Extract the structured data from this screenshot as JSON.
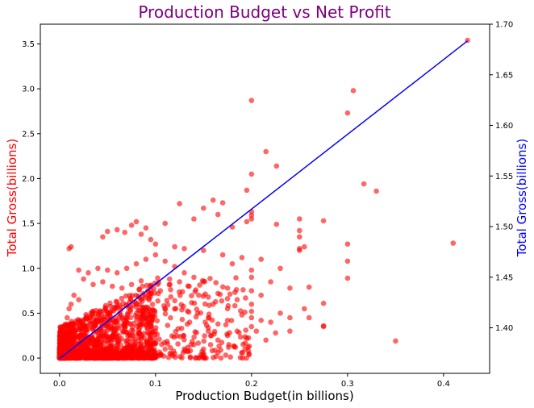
{
  "chart_data": {
    "type": "scatter",
    "title": "Production Budget vs Net Profit",
    "xlabel": "Production Budget(in billions)",
    "ylabel_left": "Total Gross(billions)",
    "ylabel_right": "Total Gross(billions)",
    "xlim": [
      -0.02,
      0.448
    ],
    "ylim_left": [
      -0.17,
      3.72
    ],
    "ylim_right": [
      1.355,
      1.7
    ],
    "x_ticks": [
      0.0,
      0.1,
      0.2,
      0.3,
      0.4
    ],
    "x_tick_labels": [
      "0.0",
      "0.1",
      "0.2",
      "0.3",
      "0.4"
    ],
    "y_left_ticks": [
      0.0,
      0.5,
      1.0,
      1.5,
      2.0,
      2.5,
      3.0,
      3.5
    ],
    "y_left_tick_labels": [
      "0.0",
      "0.5",
      "1.0",
      "1.5",
      "2.0",
      "2.5",
      "3.0",
      "3.5"
    ],
    "y_right_ticks": [
      1.4,
      1.45,
      1.5,
      1.55,
      1.6,
      1.65,
      1.7
    ],
    "y_right_tick_labels": [
      "1.40",
      "1.45",
      "1.50",
      "1.55",
      "1.60",
      "1.65",
      "1.70"
    ],
    "grid": false,
    "legend": "none",
    "colors": {
      "title": "#800080",
      "scatter": "#ff0000",
      "line": "#0000ff",
      "left_label": "#ff0000",
      "right_label": "#0000ff",
      "x_label": "#000000"
    },
    "series": [
      {
        "type": "scatter",
        "axis": "left",
        "points": [
          [
            0.425,
            3.54
          ],
          [
            0.306,
            2.98
          ],
          [
            0.2,
            2.87
          ],
          [
            0.3,
            2.73
          ],
          [
            0.215,
            2.3
          ],
          [
            0.2,
            2.05
          ],
          [
            0.226,
            2.14
          ],
          [
            0.317,
            1.94
          ],
          [
            0.33,
            1.86
          ],
          [
            0.195,
            1.87
          ],
          [
            0.15,
            1.67
          ],
          [
            0.16,
            1.76
          ],
          [
            0.17,
            1.73
          ],
          [
            0.2,
            1.63
          ],
          [
            0.2,
            1.59
          ],
          [
            0.2,
            1.55
          ],
          [
            0.226,
            1.49
          ],
          [
            0.25,
            1.55
          ],
          [
            0.275,
            1.53
          ],
          [
            0.25,
            1.42
          ],
          [
            0.25,
            1.35
          ],
          [
            0.255,
            1.24
          ],
          [
            0.25,
            1.22
          ],
          [
            0.25,
            1.2
          ],
          [
            0.3,
            1.27
          ],
          [
            0.3,
            1.08
          ],
          [
            0.3,
            0.89
          ],
          [
            0.26,
            0.79
          ],
          [
            0.275,
            0.61
          ],
          [
            0.275,
            0.36
          ],
          [
            0.275,
            0.35
          ],
          [
            0.41,
            1.28
          ],
          [
            0.35,
            0.19
          ],
          [
            0.01,
            1.22
          ],
          [
            0.012,
            1.24
          ],
          [
            0.08,
            1.52
          ],
          [
            0.075,
            1.48
          ],
          [
            0.068,
            1.4
          ],
          [
            0.09,
            1.45
          ],
          [
            0.11,
            1.5
          ],
          [
            0.125,
            1.72
          ],
          [
            0.14,
            1.55
          ],
          [
            0.165,
            1.6
          ],
          [
            0.18,
            1.46
          ],
          [
            0.195,
            1.52
          ],
          [
            0.05,
            1.41
          ],
          [
            0.06,
            1.43
          ],
          [
            0.045,
            1.35
          ],
          [
            0.085,
            1.38
          ],
          [
            0.095,
            1.32
          ],
          [
            0.1,
            1.27
          ],
          [
            0.12,
            1.24
          ],
          [
            0.13,
            1.22
          ],
          [
            0.15,
            1.2
          ],
          [
            0.17,
            1.15
          ],
          [
            0.19,
            1.12
          ],
          [
            0.21,
            1.1
          ],
          [
            0.23,
            1.0
          ],
          [
            0.2,
            0.98
          ],
          [
            0.18,
            1.05
          ],
          [
            0.2,
            0.9
          ],
          [
            0.22,
            0.85
          ],
          [
            0.24,
            0.78
          ],
          [
            0.2,
            0.75
          ],
          [
            0.21,
            0.7
          ],
          [
            0.185,
            0.65
          ],
          [
            0.2,
            0.6
          ],
          [
            0.2,
            0.52
          ],
          [
            0.2,
            0.45
          ],
          [
            0.21,
            0.42
          ],
          [
            0.22,
            0.4
          ],
          [
            0.23,
            0.5
          ],
          [
            0.24,
            0.45
          ],
          [
            0.255,
            0.55
          ],
          [
            0.19,
            0.48
          ],
          [
            0.175,
            0.55
          ],
          [
            0.175,
            0.42
          ],
          [
            0.165,
            0.38
          ],
          [
            0.155,
            0.45
          ],
          [
            0.16,
            0.6
          ],
          [
            0.15,
            0.85
          ],
          [
            0.14,
            0.9
          ],
          [
            0.13,
            0.95
          ],
          [
            0.12,
            1.02
          ],
          [
            0.11,
            1.08
          ],
          [
            0.1,
            1.15
          ],
          [
            0.09,
            1.1
          ],
          [
            0.08,
            1.05
          ],
          [
            0.07,
            1.0
          ],
          [
            0.06,
            0.95
          ],
          [
            0.05,
            0.98
          ],
          [
            0.04,
            1.0
          ],
          [
            0.03,
            0.95
          ],
          [
            0.02,
            0.98
          ],
          [
            0.025,
            0.88
          ],
          [
            0.035,
            0.82
          ],
          [
            0.045,
            0.85
          ],
          [
            0.055,
            0.8
          ],
          [
            0.065,
            0.78
          ],
          [
            0.075,
            0.82
          ],
          [
            0.085,
            0.86
          ],
          [
            0.095,
            0.8
          ],
          [
            0.105,
            0.75
          ],
          [
            0.115,
            0.82
          ],
          [
            0.125,
            0.85
          ],
          [
            0.135,
            0.8
          ],
          [
            0.145,
            0.7
          ],
          [
            0.155,
            0.68
          ],
          [
            0.165,
            0.72
          ],
          [
            0.175,
            0.78
          ],
          [
            0.155,
            0.3
          ],
          [
            0.165,
            0.2
          ],
          [
            0.175,
            0.25
          ],
          [
            0.185,
            0.3
          ],
          [
            0.195,
            0.22
          ],
          [
            0.205,
            0.3
          ],
          [
            0.215,
            0.2
          ],
          [
            0.225,
            0.28
          ],
          [
            0.15,
            0.05
          ],
          [
            0.15,
            0.1
          ],
          [
            0.14,
            0.15
          ],
          [
            0.13,
            0.1
          ],
          [
            0.12,
            0.05
          ],
          [
            0.11,
            0.1
          ],
          [
            0.1,
            0.03
          ],
          [
            0.26,
            0.45
          ],
          [
            0.24,
            0.3
          ],
          [
            0.2,
            0.35
          ],
          [
            0.01,
            0.55
          ],
          [
            0.012,
            0.6
          ],
          [
            0.008,
            0.45
          ],
          [
            0.015,
            0.7
          ],
          [
            0.005,
            0.35
          ],
          [
            0.02,
            0.65
          ]
        ]
      },
      {
        "type": "line",
        "axis": "right",
        "points": [
          [
            0.0,
            1.3695
          ],
          [
            0.425,
            1.6835
          ]
        ]
      }
    ]
  }
}
